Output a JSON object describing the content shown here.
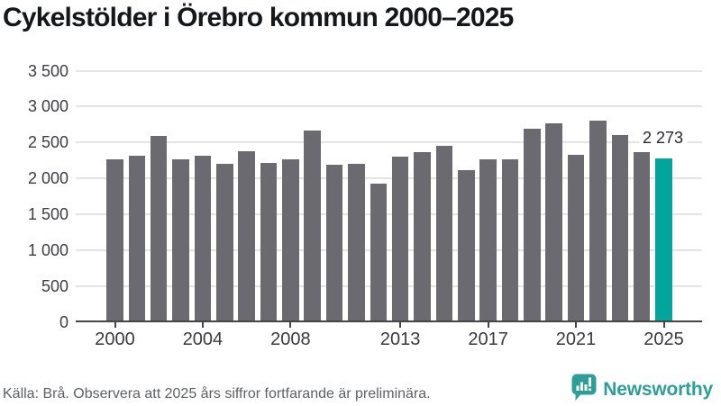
{
  "title": "Cykelstölder i Örebro kommun 2000–2025",
  "footer": {
    "source_note": "Källa: Brå. Observera att 2025 års siffror fortfarande är preliminära.",
    "brand": "Newsworthy"
  },
  "colors": {
    "bar": "#6b6a70",
    "highlight": "#00a69c",
    "brand_teal": "#2d9f98",
    "grid": "#e4e4e6",
    "axis": "#434549"
  },
  "chart_data": {
    "type": "bar",
    "title": "Cykelstölder i Örebro kommun 2000–2025",
    "x": [
      2000,
      2001,
      2002,
      2003,
      2004,
      2005,
      2006,
      2007,
      2008,
      2009,
      2010,
      2011,
      2012,
      2013,
      2014,
      2015,
      2016,
      2017,
      2018,
      2019,
      2020,
      2021,
      2022,
      2023,
      2024,
      2025
    ],
    "values": [
      2260,
      2320,
      2590,
      2270,
      2310,
      2200,
      2380,
      2210,
      2270,
      2660,
      2190,
      2200,
      1930,
      2300,
      2370,
      2450,
      2120,
      2260,
      2270,
      2690,
      2770,
      2330,
      2810,
      2600,
      2370,
      2273
    ],
    "highlight": {
      "year": 2025,
      "value": 2273,
      "label": "2 273"
    },
    "ylim": [
      0,
      3500
    ],
    "grid": true,
    "legend": "none",
    "y_ticks": [
      {
        "value": 0,
        "label": "0"
      },
      {
        "value": 500,
        "label": "500"
      },
      {
        "value": 1000,
        "label": "1 000"
      },
      {
        "value": 1500,
        "label": "1 500"
      },
      {
        "value": 2000,
        "label": "2 000"
      },
      {
        "value": 2500,
        "label": "2 500"
      },
      {
        "value": 3000,
        "label": "3 000"
      },
      {
        "value": 3500,
        "label": "3 500"
      }
    ],
    "x_ticks": [
      {
        "year": 2000,
        "label": "2000"
      },
      {
        "year": 2004,
        "label": "2004"
      },
      {
        "year": 2008,
        "label": "2008"
      },
      {
        "year": 2013,
        "label": "2013"
      },
      {
        "year": 2017,
        "label": "2017"
      },
      {
        "year": 2021,
        "label": "2021"
      },
      {
        "year": 2025,
        "label": "2025"
      }
    ]
  }
}
